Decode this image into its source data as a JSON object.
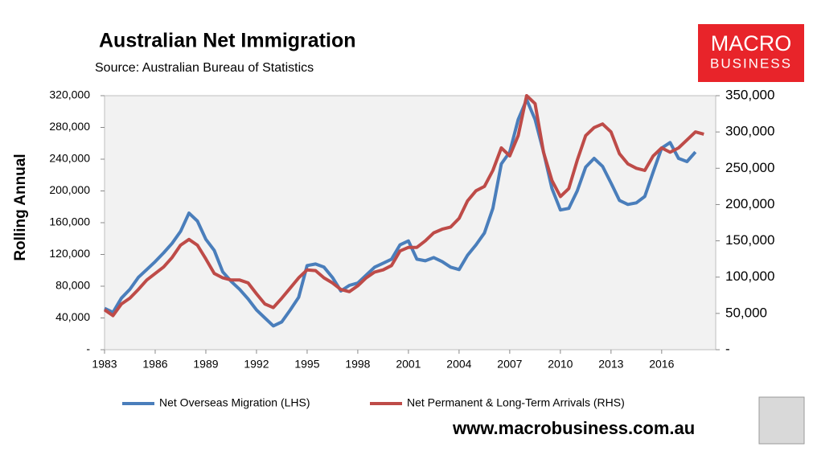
{
  "chart_data": {
    "type": "line",
    "title": "Australian Net Immigration",
    "subtitle": "Source: Australian Bureau of Statistics",
    "y_label": "Rolling Annual",
    "logo": [
      "MACRO",
      "BUSINESS"
    ],
    "footer": "www.macrobusiness.com.au",
    "x": [
      1983,
      1983.5,
      1984,
      1984.5,
      1985,
      1985.5,
      1986,
      1986.5,
      1987,
      1987.5,
      1988,
      1988.5,
      1989,
      1989.5,
      1990,
      1990.5,
      1991,
      1991.5,
      1992,
      1992.5,
      1993,
      1993.5,
      1994,
      1994.5,
      1995,
      1995.5,
      1996,
      1996.5,
      1997,
      1997.5,
      1998,
      1998.5,
      1999,
      1999.5,
      2000,
      2000.5,
      2001,
      2001.5,
      2002,
      2002.5,
      2003,
      2003.5,
      2004,
      2004.5,
      2005,
      2005.5,
      2006,
      2006.5,
      2007,
      2007.5,
      2008,
      2008.5,
      2009,
      2009.5,
      2010,
      2010.5,
      2011,
      2011.5,
      2012,
      2012.5,
      2013,
      2013.5,
      2014,
      2014.5,
      2015,
      2015.5,
      2016,
      2016.5,
      2017,
      2017.5,
      2018,
      2018.5
    ],
    "series": [
      {
        "name": "Net Overseas Migration (LHS)",
        "color": "#4a7ebb",
        "values": [
          52000,
          47000,
          65000,
          76000,
          91000,
          101000,
          111000,
          122000,
          134000,
          149000,
          172000,
          162000,
          139000,
          125000,
          98000,
          86000,
          76000,
          64000,
          50000,
          40000,
          30000,
          35000,
          50000,
          66000,
          106000,
          108000,
          104000,
          91000,
          74000,
          81000,
          84000,
          94000,
          104000,
          109000,
          114000,
          132000,
          137000,
          114000,
          112000,
          116000,
          111000,
          104000,
          101000,
          119000,
          132000,
          147000,
          178000,
          234000,
          249000,
          290000,
          315000,
          290000,
          249000,
          203000,
          176000,
          178000,
          200000,
          230000,
          241000,
          231000,
          210000,
          188000,
          183000,
          185000,
          193000,
          224000,
          254000,
          261000,
          241000,
          237000,
          249000,
          null
        ]
      },
      {
        "name": "Net Permanent & Long-Term Arrivals (RHS)",
        "color": "#be4b48",
        "axis": "y2",
        "values": [
          55000,
          47000,
          63000,
          71000,
          83000,
          96000,
          105000,
          114000,
          127000,
          144000,
          152000,
          144000,
          125000,
          105000,
          99000,
          96000,
          96000,
          92000,
          77000,
          63000,
          58000,
          71000,
          85000,
          99000,
          110000,
          109000,
          99000,
          92000,
          83000,
          80000,
          88000,
          99000,
          107000,
          110000,
          116000,
          136000,
          141000,
          141000,
          150000,
          161000,
          166000,
          169000,
          181000,
          205000,
          219000,
          225000,
          247000,
          278000,
          267000,
          295000,
          350000,
          339000,
          272000,
          233000,
          211000,
          222000,
          261000,
          295000,
          306000,
          311000,
          300000,
          270000,
          256000,
          250000,
          247000,
          267000,
          278000,
          272000,
          278000,
          289000,
          300000,
          297000
        ]
      }
    ],
    "xlim": [
      1983,
      2019.2
    ],
    "xticks": [
      1983,
      1986,
      1989,
      1992,
      1995,
      1998,
      2001,
      2004,
      2007,
      2010,
      2013,
      2016
    ],
    "ylim": [
      0,
      320000
    ],
    "yticks": [
      {
        "value": 0,
        "label": "-"
      },
      {
        "value": 40000,
        "label": "40,000"
      },
      {
        "value": 80000,
        "label": "80,000"
      },
      {
        "value": 120000,
        "label": "120,000"
      },
      {
        "value": 160000,
        "label": "160,000"
      },
      {
        "value": 200000,
        "label": "200,000"
      },
      {
        "value": 240000,
        "label": "240,000"
      },
      {
        "value": 280000,
        "label": "280,000"
      },
      {
        "value": 320000,
        "label": "320,000"
      }
    ],
    "y2lim": [
      0,
      350000
    ],
    "y2ticks": [
      {
        "value": 0,
        "label": "-"
      },
      {
        "value": 50000,
        "label": "50,000"
      },
      {
        "value": 100000,
        "label": "100,000"
      },
      {
        "value": 150000,
        "label": "150,000"
      },
      {
        "value": 200000,
        "label": "200,000"
      },
      {
        "value": 250000,
        "label": "250,000"
      },
      {
        "value": 300000,
        "label": "300,000"
      },
      {
        "value": 350000,
        "label": "350,000"
      }
    ],
    "legend": "bottom"
  }
}
